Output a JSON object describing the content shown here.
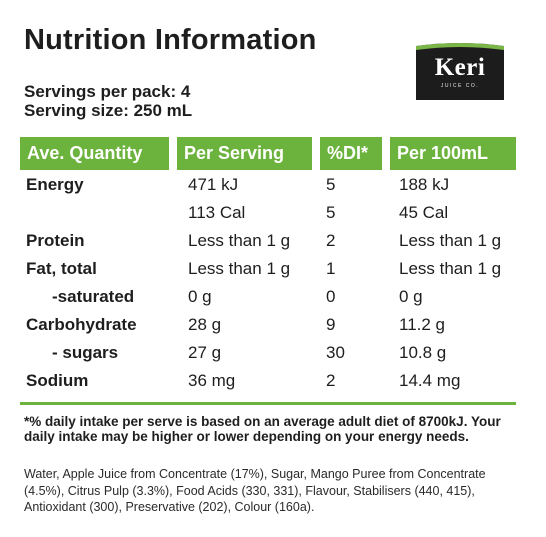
{
  "title": "Nutrition Information",
  "servings_per_pack": "Servings per pack: 4",
  "serving_size": "Serving size: 250 mL",
  "logo": {
    "brand": "Keri",
    "tagline": "JUICE CO."
  },
  "table": {
    "headers": [
      "Ave. Quantity",
      "Per Serving",
      "%DI*",
      "Per 100mL"
    ],
    "rows": [
      {
        "name": "Energy",
        "per_serving": "471 kJ",
        "di": "5",
        "per_100ml": "188 kJ"
      },
      {
        "name": "",
        "per_serving": "113 Cal",
        "di": "5",
        "per_100ml": "45 Cal"
      },
      {
        "name": "Protein",
        "per_serving": "Less than 1 g",
        "di": "2",
        "per_100ml": "Less than 1 g"
      },
      {
        "name": "Fat, total",
        "per_serving": "Less than 1 g",
        "di": "1",
        "per_100ml": "Less than 1 g"
      },
      {
        "name": "-saturated",
        "per_serving": "0 g",
        "di": "0",
        "per_100ml": "0 g"
      },
      {
        "name": "Carbohydrate",
        "per_serving": "28 g",
        "di": "9",
        "per_100ml": "11.2 g"
      },
      {
        "name": "- sugars",
        "per_serving": "27 g",
        "di": "30",
        "per_100ml": "10.8 g"
      },
      {
        "name": "Sodium",
        "per_serving": "36 mg",
        "di": "2",
        "per_100ml": "14.4 mg"
      }
    ]
  },
  "footnote": "*% daily intake per serve is based on an average adult diet of 8700kJ. Your daily intake may be higher or lower depending on your energy needs.",
  "ingredients": "Water, Apple Juice from Concentrate (17%), Sugar, Mango Puree from Concentrate (4.5%), Citrus Pulp (3.3%), Food Acids (330, 331), Flavour, Stabilisers (440, 415), Antioxidant (300), Preservative (202), Colour (160a).",
  "colors": {
    "accent_green": "#6cb33e",
    "logo_background": "#1c1c1c"
  }
}
